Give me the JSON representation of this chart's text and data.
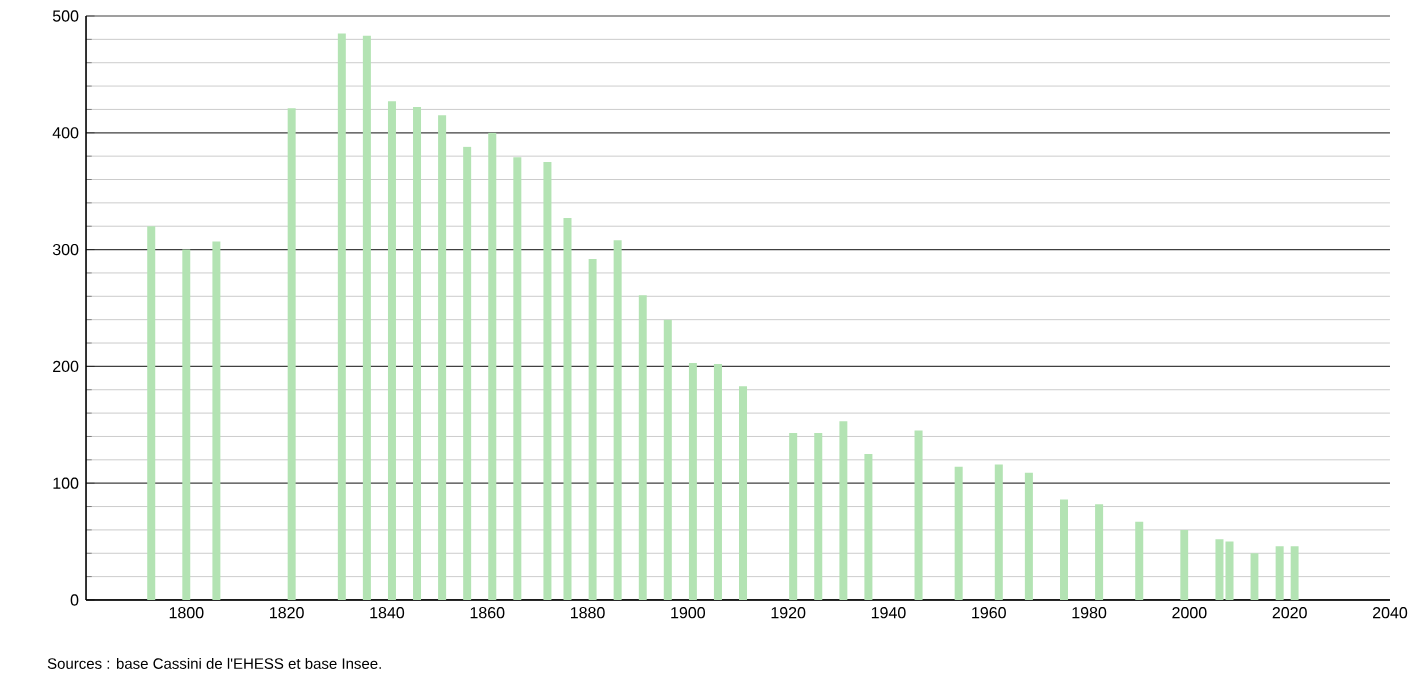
{
  "chart_data": {
    "type": "bar",
    "color": "#b3e3b3",
    "x": [
      1793,
      1800,
      1806,
      1821,
      1831,
      1836,
      1841,
      1846,
      1851,
      1856,
      1861,
      1866,
      1872,
      1876,
      1881,
      1886,
      1891,
      1896,
      1901,
      1906,
      1911,
      1921,
      1926,
      1931,
      1936,
      1946,
      1954,
      1962,
      1968,
      1975,
      1982,
      1990,
      1999,
      2006,
      2008,
      2013,
      2018,
      2021
    ],
    "values": [
      320,
      300,
      307,
      421,
      485,
      483,
      427,
      422,
      415,
      388,
      400,
      379,
      375,
      327,
      292,
      308,
      261,
      240,
      203,
      202,
      183,
      143,
      143,
      153,
      125,
      145,
      114,
      116,
      109,
      86,
      82,
      67,
      60,
      52,
      50,
      40,
      46,
      46
    ],
    "xlim": [
      1780,
      2040
    ],
    "xticks": [
      1800,
      1820,
      1840,
      1860,
      1880,
      1900,
      1920,
      1940,
      1960,
      1980,
      2000,
      2020,
      2040
    ],
    "ylim": [
      0,
      500
    ],
    "yticks": [
      0,
      100,
      200,
      300,
      400,
      500
    ],
    "grid": "y",
    "annotations": [
      "Sources : base Cassini de l'EHESS et base Insee."
    ]
  }
}
